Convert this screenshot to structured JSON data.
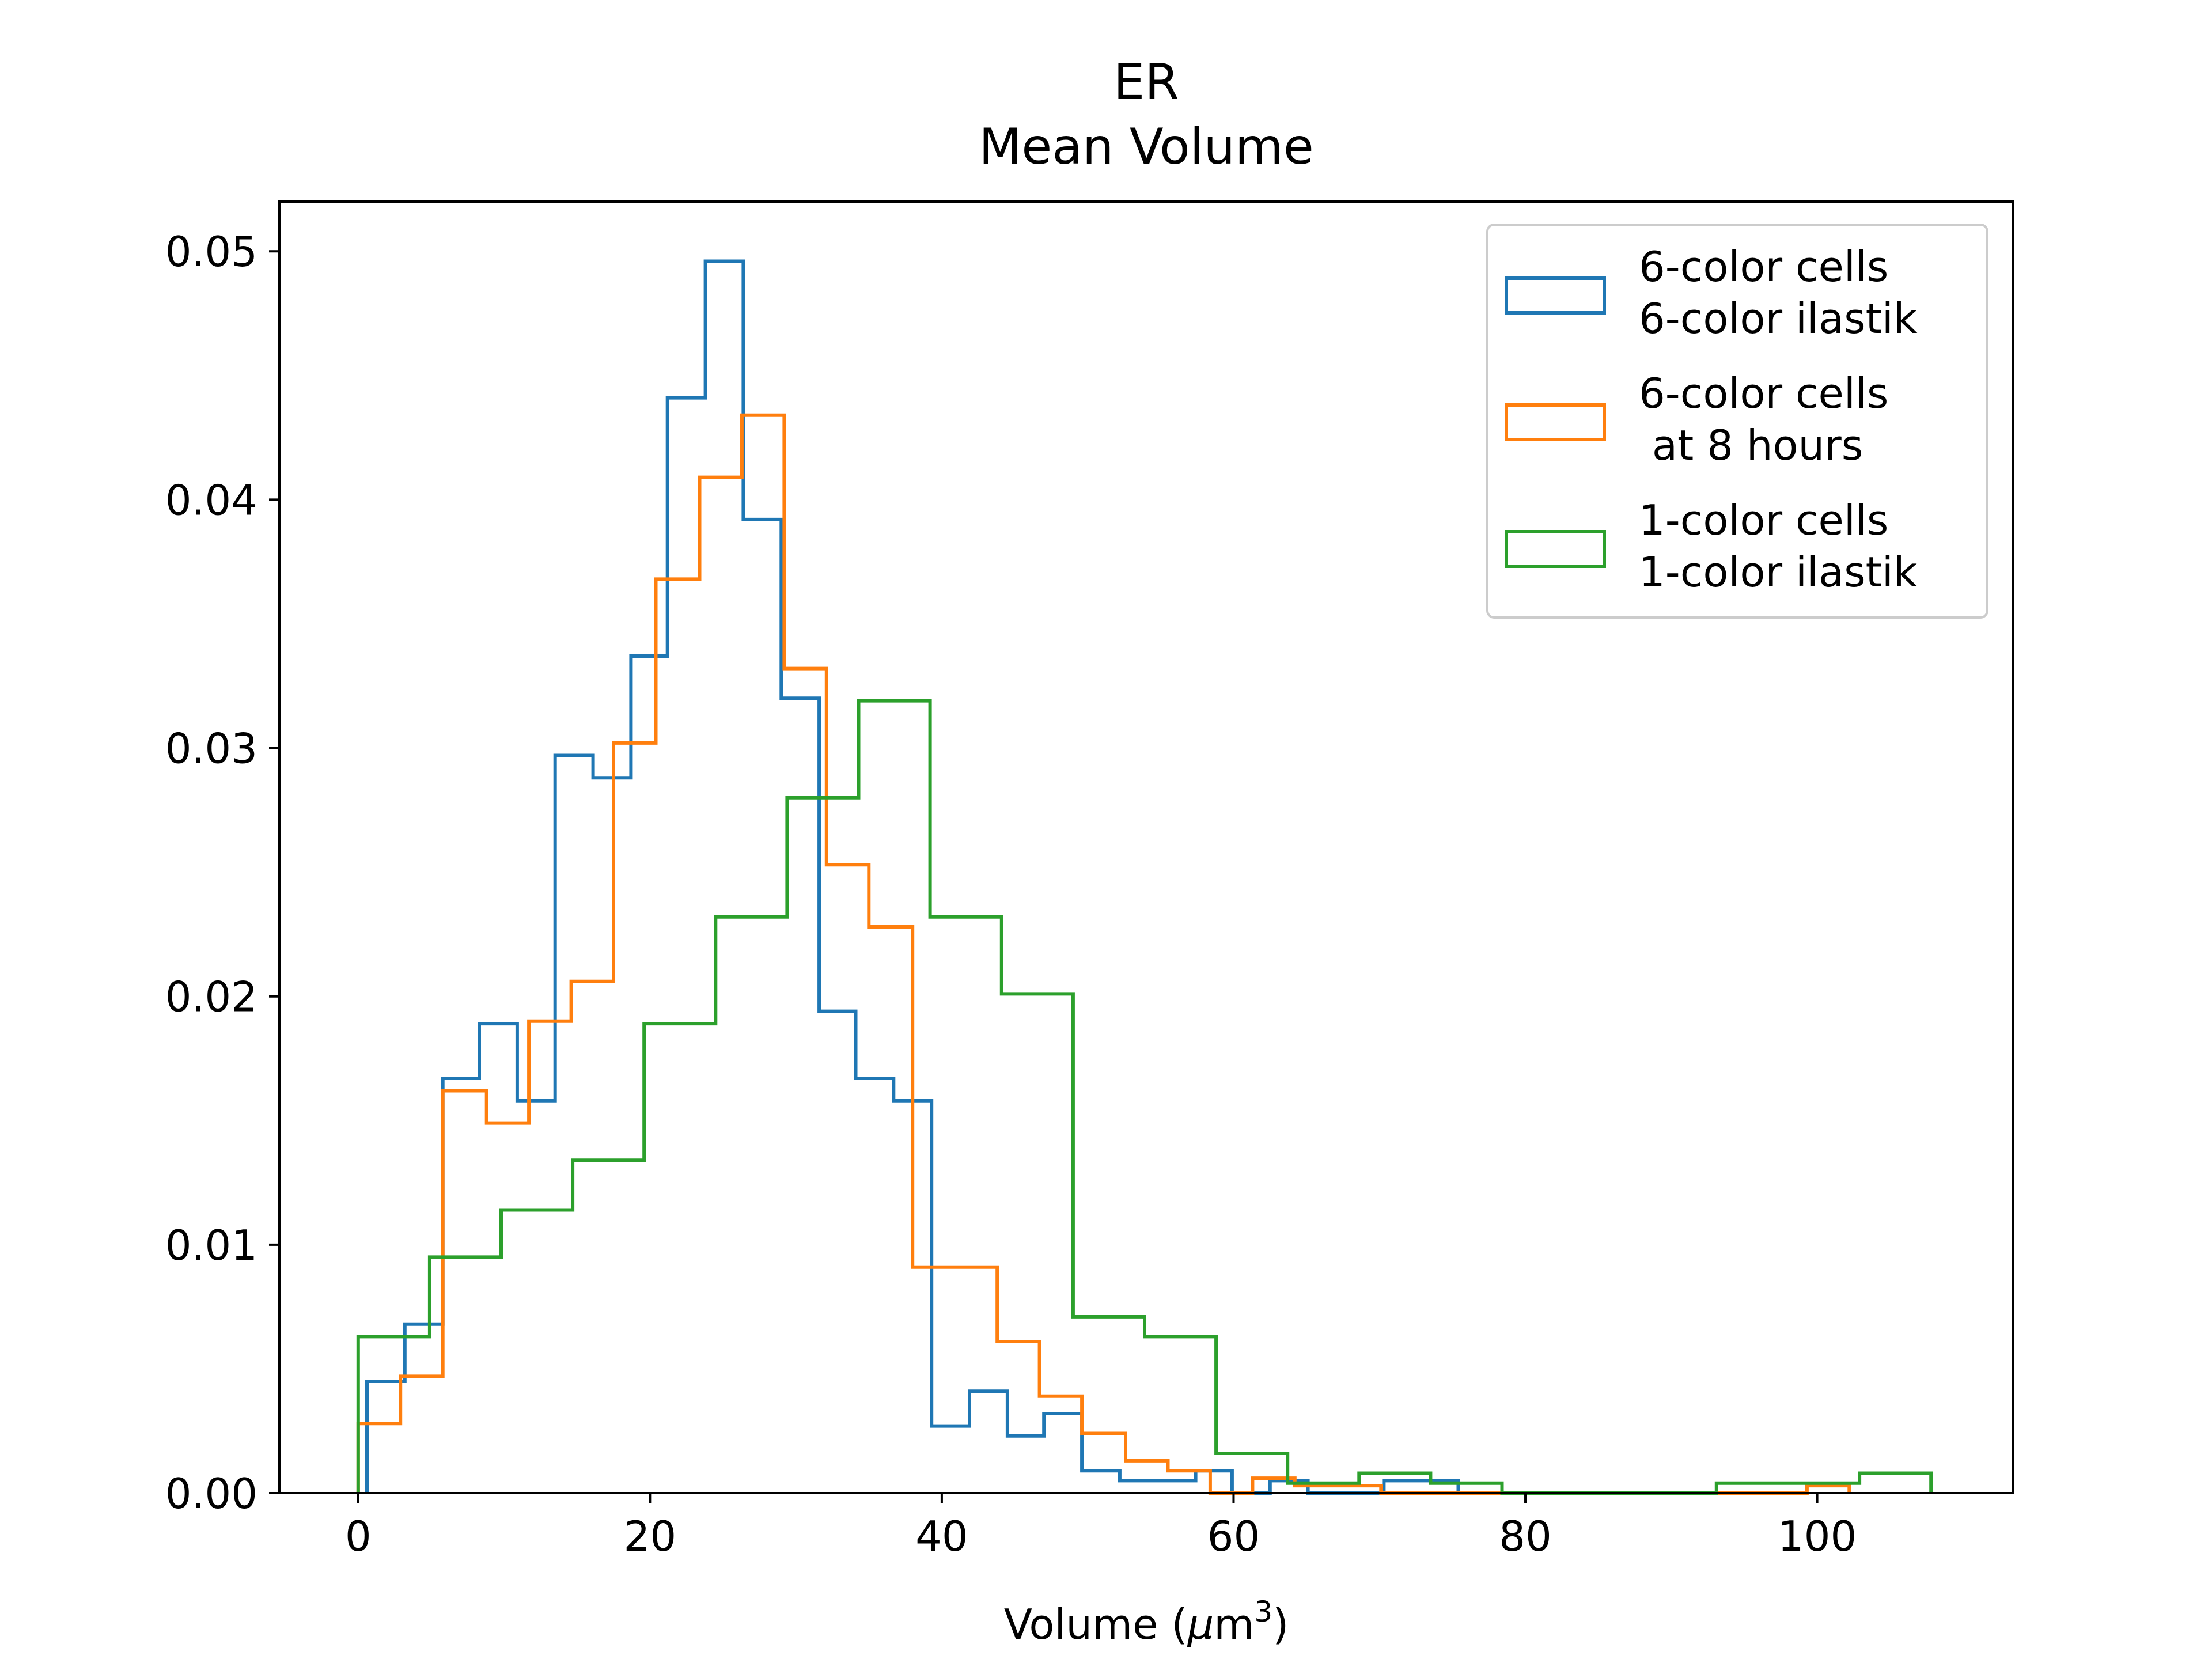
{
  "chart_data": {
    "type": "histogram",
    "title": "ER\nMean Volume",
    "title_lines": [
      "ER",
      "Mean Volume"
    ],
    "xlabel": "Volume (μm³)",
    "xlabel_parts": {
      "pre": "Volume (",
      "mu": "μ",
      "m": "m",
      "sup": "3",
      "post": ")"
    },
    "ylabel": "",
    "xlim": [
      -5.4,
      113.4
    ],
    "ylim": [
      0,
      0.052
    ],
    "x_ticks": [
      0,
      20,
      40,
      60,
      80,
      100
    ],
    "x_tick_labels": [
      "0",
      "20",
      "40",
      "60",
      "80",
      "100"
    ],
    "y_ticks": [
      0,
      0.01,
      0.02,
      0.03,
      0.04,
      0.05
    ],
    "y_tick_labels": [
      "0.00",
      "0.01",
      "0.02",
      "0.03",
      "0.04",
      "0.05"
    ],
    "grid": false,
    "legend_position": "upper right",
    "series": [
      {
        "name": "6-color cells\n6-color ilastik",
        "name_lines": [
          "6-color cells",
          "6-color ilastik"
        ],
        "color": "#1f77b4",
        "edges": [
          0.6,
          3.2,
          5.8,
          8.3,
          10.9,
          13.5,
          16.1,
          18.7,
          21.2,
          23.8,
          26.4,
          29.0,
          31.6,
          34.1,
          36.7,
          39.3,
          41.9,
          44.5,
          47.0,
          49.6,
          52.2,
          54.8,
          57.4,
          59.9,
          62.5,
          65.1,
          67.7,
          70.3,
          72.8,
          75.4
        ],
        "values": [
          0.0045,
          0.0068,
          0.0167,
          0.0189,
          0.0158,
          0.0297,
          0.0288,
          0.0337,
          0.0441,
          0.0496,
          0.0392,
          0.032,
          0.0194,
          0.0167,
          0.0158,
          0.0027,
          0.0041,
          0.0023,
          0.0032,
          0.0009,
          0.0005,
          0.0005,
          0.0009,
          0.0,
          0.0005,
          0.0,
          0.0,
          0.0005,
          0.0005
        ]
      },
      {
        "name": "6-color cells\n at 8 hours",
        "name_lines": [
          "6-color cells",
          " at 8 hours"
        ],
        "color": "#ff7f0e",
        "edges": [
          0.0,
          2.9,
          5.8,
          8.8,
          11.7,
          14.6,
          17.5,
          20.4,
          23.4,
          26.3,
          29.2,
          32.1,
          35.0,
          38.0,
          40.9,
          43.8,
          46.7,
          49.6,
          52.6,
          55.5,
          58.4,
          61.3,
          64.2,
          67.2,
          70.1,
          73.0,
          75.9,
          78.8,
          81.8,
          84.7,
          87.6,
          90.5,
          93.4,
          96.4,
          99.3,
          102.2
        ],
        "values": [
          0.0028,
          0.0047,
          0.0162,
          0.0149,
          0.019,
          0.0206,
          0.0302,
          0.0368,
          0.0409,
          0.0434,
          0.0332,
          0.0253,
          0.0228,
          0.0091,
          0.0091,
          0.0061,
          0.0039,
          0.0024,
          0.0013,
          0.0009,
          0.0,
          0.0006,
          0.0003,
          0.0003,
          0.0,
          0.0,
          0.0,
          0.0,
          0.0,
          0.0,
          0.0,
          0.0,
          0.0,
          0.0,
          0.0003
        ]
      },
      {
        "name": "1-color cells\n1-color ilastik",
        "name_lines": [
          "1-color cells",
          "1-color ilastik"
        ],
        "color": "#2ca02c",
        "edges": [
          0.0,
          4.9,
          9.8,
          14.7,
          19.6,
          24.5,
          29.4,
          34.3,
          39.2,
          44.1,
          49.0,
          53.9,
          58.8,
          63.7,
          68.6,
          73.5,
          78.4,
          83.3,
          88.2,
          93.1,
          98.0,
          102.9,
          107.8
        ],
        "values": [
          0.0063,
          0.0095,
          0.0114,
          0.0134,
          0.0189,
          0.0232,
          0.028,
          0.0319,
          0.0232,
          0.0201,
          0.0071,
          0.0063,
          0.0016,
          0.0004,
          0.0008,
          0.0004,
          0.0,
          0.0,
          0.0,
          0.0004,
          0.0004,
          0.0008
        ]
      }
    ]
  }
}
